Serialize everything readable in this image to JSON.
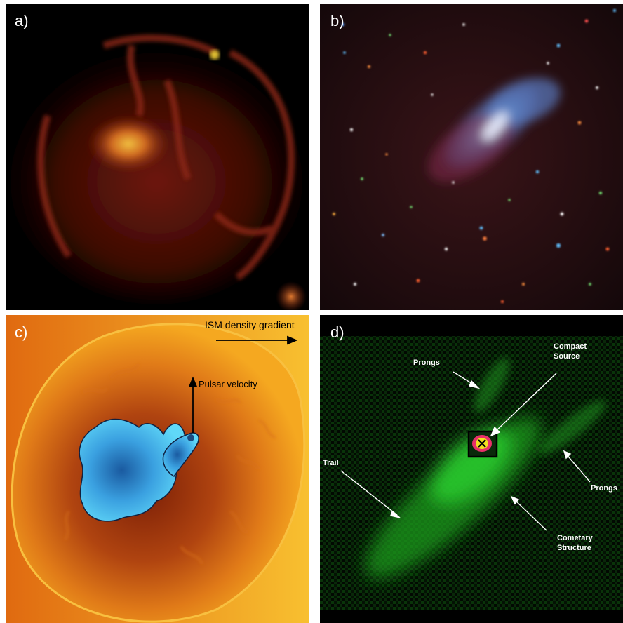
{
  "panels": {
    "a": {
      "label": "a)"
    },
    "b": {
      "label": "b)"
    },
    "c": {
      "label": "c)",
      "annotations": {
        "ism_density_gradient": "ISM density gradient",
        "pulsar_velocity": "Pulsar velocity"
      }
    },
    "d": {
      "label": "d)",
      "annotations": {
        "prongs_top": "Prongs",
        "compact_source_line1": "Compact",
        "compact_source_line2": "Source",
        "trail": "Trail",
        "prongs_right": "Prongs",
        "cometary_line1": "Cometary",
        "cometary_line2": "Structure"
      }
    }
  },
  "colors": {
    "panel_a_bg": "#000000",
    "panel_a_glow": "#c0301a",
    "panel_a_bright": "#e8a030",
    "panel_b_bg": "#1a0a0c",
    "panel_b_nebula": "#6a9cd0",
    "panel_c_outer": "#f0a818",
    "panel_c_inner": "#c04a10",
    "panel_c_pwn": "#38b8f0",
    "panel_d_bg": "#000000",
    "panel_d_green": "#22c42a",
    "panel_d_source": "#e8306a"
  }
}
